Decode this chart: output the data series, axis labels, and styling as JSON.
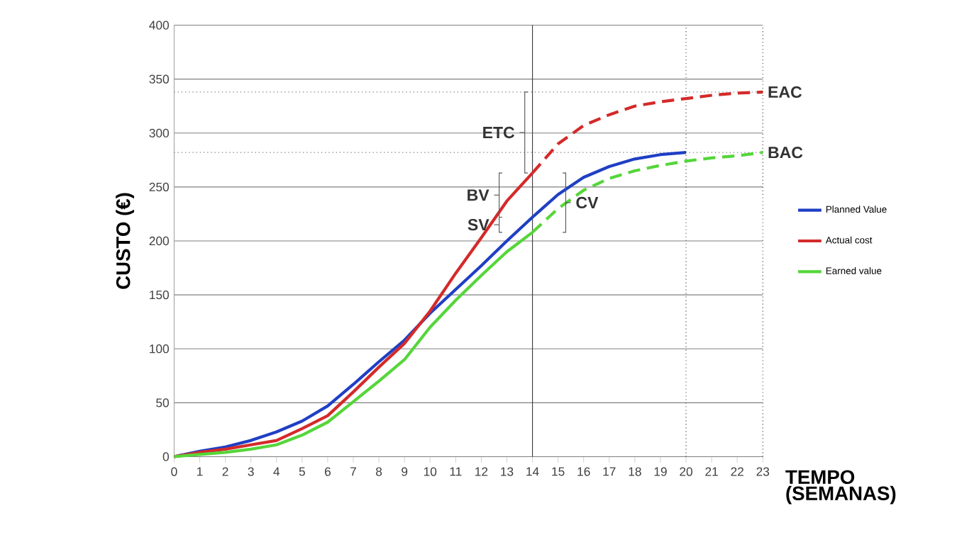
{
  "chart_data": {
    "type": "line",
    "xlabel": "TEMPO (SEMANAS)",
    "ylabel": "CUSTO (€)",
    "xlim": [
      0,
      23
    ],
    "ylim": [
      0,
      400
    ],
    "xticks": [
      0,
      1,
      2,
      3,
      4,
      5,
      6,
      7,
      8,
      9,
      10,
      11,
      12,
      13,
      14,
      15,
      16,
      17,
      18,
      19,
      20,
      21,
      22,
      23
    ],
    "yticks": [
      0,
      50,
      100,
      150,
      200,
      250,
      300,
      350,
      400
    ],
    "grid": "y",
    "legend": "right",
    "marker": "none",
    "series": [
      {
        "name": "Planned Value",
        "color": "#1f3fc4",
        "line_style": "solid",
        "x": [
          0,
          1,
          2,
          3,
          4,
          5,
          6,
          7,
          8,
          9,
          10,
          11,
          12,
          13,
          14,
          15,
          16,
          17,
          18,
          19,
          20
        ],
        "values": [
          0,
          5,
          9,
          15,
          23,
          33,
          47,
          67,
          88,
          108,
          133,
          155,
          177,
          200,
          222,
          243,
          259,
          269,
          276,
          280,
          282
        ]
      },
      {
        "name": "Actual cost",
        "color": "#d42a2a",
        "line_style": "solid",
        "x": [
          0,
          1,
          2,
          3,
          4,
          5,
          6,
          7,
          8,
          9,
          10,
          11,
          12,
          13,
          14
        ],
        "values": [
          0,
          4,
          7,
          11,
          15,
          26,
          38,
          60,
          83,
          105,
          135,
          170,
          203,
          237,
          263
        ]
      },
      {
        "name": "Earned value",
        "color": "#55d63a",
        "line_style": "solid",
        "x": [
          0,
          1,
          2,
          3,
          4,
          5,
          6,
          7,
          8,
          9,
          10,
          11,
          12,
          13,
          14
        ],
        "values": [
          0,
          2,
          4,
          7,
          11,
          20,
          32,
          51,
          70,
          90,
          120,
          145,
          168,
          190,
          208
        ]
      },
      {
        "color": "#d42a2a",
        "line_style": "dashed",
        "x": [
          14,
          15,
          16,
          17,
          18,
          19,
          20,
          21,
          22,
          23
        ],
        "values": [
          263,
          290,
          307,
          317,
          325,
          329,
          332,
          335,
          337,
          338
        ]
      },
      {
        "color": "#55d63a",
        "line_style": "dashed",
        "x": [
          14,
          15,
          16,
          17,
          18,
          19,
          20,
          21,
          22,
          23
        ],
        "values": [
          208,
          230,
          247,
          258,
          265,
          270,
          274,
          277,
          279,
          282
        ]
      }
    ],
    "ref_lines": [
      {
        "axis": "y",
        "value": 338,
        "label": "EAC",
        "color": "#808080",
        "line_style": "dotted"
      },
      {
        "axis": "y",
        "value": 282,
        "label": "BAC",
        "color": "#808080",
        "line_style": "dotted"
      },
      {
        "axis": "x",
        "value": 14,
        "color": "#404040",
        "line_style": "solid"
      },
      {
        "axis": "x",
        "value": 20,
        "color": "#404040",
        "line_style": "dotted"
      },
      {
        "axis": "x",
        "value": 23,
        "color": "#404040",
        "line_style": "dotted"
      }
    ],
    "annotations": [
      "ETC",
      "BV",
      "SV",
      "CV"
    ]
  }
}
